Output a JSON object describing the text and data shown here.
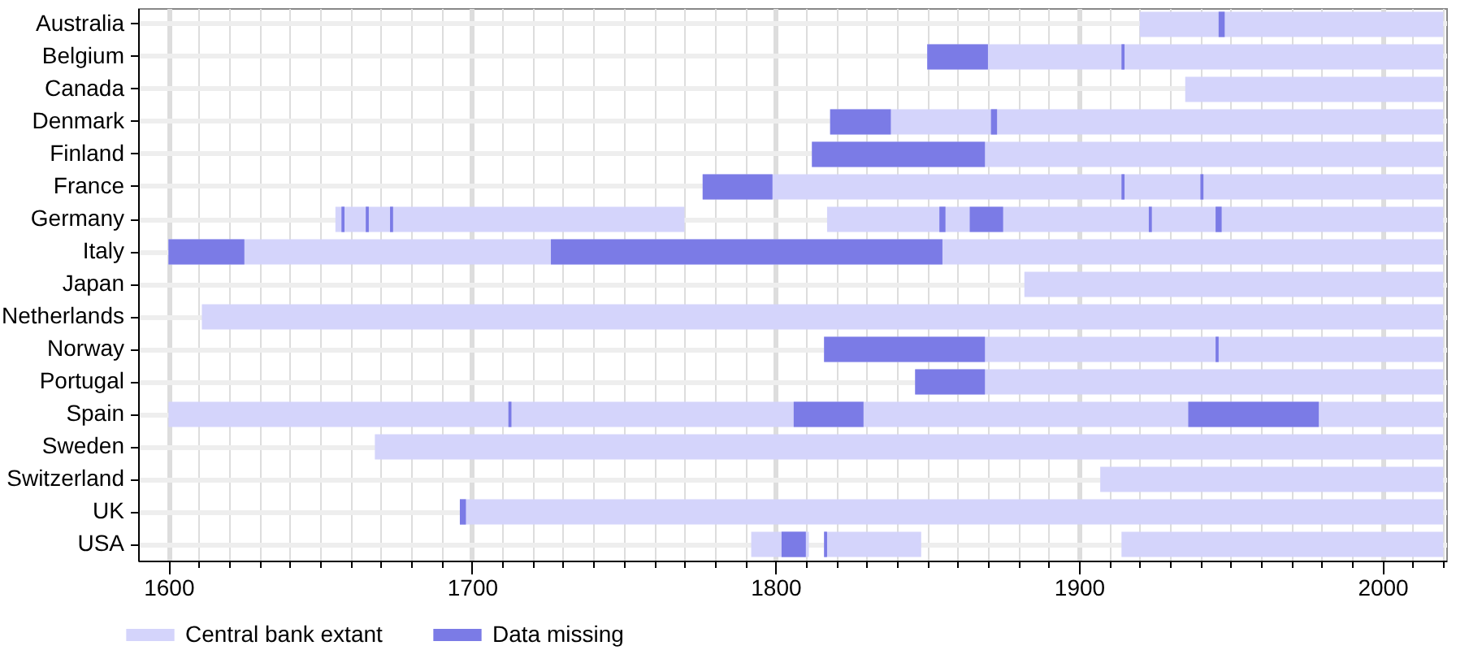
{
  "chart_data": {
    "type": "bar",
    "orientation": "horizontal",
    "categories": [
      "Australia",
      "Belgium",
      "Canada",
      "Denmark",
      "Finland",
      "France",
      "Germany",
      "Italy",
      "Japan",
      "Netherlands",
      "Norway",
      "Portugal",
      "Spain",
      "Sweden",
      "Switzerland",
      "UK",
      "USA"
    ],
    "series": [
      {
        "name": "Central bank extant",
        "color": "#d4d4fb",
        "base": [
          1920,
          1850,
          1935,
          1818,
          1812,
          1776,
          1655,
          1600,
          1882,
          1611,
          1816,
          1846,
          1600,
          1668,
          1907,
          1696,
          1792
        ],
        "values": [
          100,
          170,
          85,
          202,
          208,
          244,
          115,
          420,
          138,
          409,
          204,
          174,
          420,
          352,
          113,
          324,
          19
        ]
      },
      {
        "color": "#d4d4fb",
        "base": [
          null,
          null,
          null,
          null,
          null,
          null,
          1817,
          null,
          null,
          null,
          null,
          null,
          null,
          null,
          null,
          null,
          1816
        ],
        "values": [
          null,
          null,
          null,
          null,
          null,
          null,
          203,
          null,
          null,
          null,
          null,
          null,
          null,
          null,
          null,
          null,
          32
        ]
      },
      {
        "color": "#d4d4fb",
        "base": [
          null,
          null,
          null,
          null,
          null,
          null,
          null,
          null,
          null,
          null,
          null,
          null,
          null,
          null,
          null,
          null,
          1914
        ],
        "values": [
          null,
          null,
          null,
          null,
          null,
          null,
          null,
          null,
          null,
          null,
          null,
          null,
          null,
          null,
          null,
          null,
          106
        ]
      },
      {
        "name": "Data missing",
        "color": "#7b7be6",
        "base": [
          1946,
          1850,
          null,
          1818,
          1812,
          1776,
          1657,
          1600,
          null,
          null,
          1816,
          1846,
          1712,
          null,
          null,
          1696,
          1802
        ],
        "values": [
          2,
          20,
          null,
          20,
          57,
          23,
          1,
          25,
          null,
          null,
          53,
          23,
          1,
          null,
          null,
          2,
          8
        ]
      },
      {
        "color": "#7b7be6",
        "base": [
          null,
          1914,
          null,
          1871,
          null,
          1914,
          1665,
          1726,
          null,
          null,
          1945,
          null,
          1806,
          null,
          null,
          null,
          1816
        ],
        "values": [
          null,
          1,
          null,
          2,
          null,
          1,
          1,
          129,
          null,
          null,
          1,
          null,
          23,
          null,
          null,
          null,
          1
        ]
      },
      {
        "color": "#7b7be6",
        "base": [
          null,
          null,
          null,
          null,
          null,
          1940,
          1673,
          null,
          null,
          null,
          null,
          null,
          1936,
          null,
          null,
          null,
          null
        ],
        "values": [
          null,
          null,
          null,
          null,
          null,
          1,
          1,
          null,
          null,
          null,
          null,
          null,
          43,
          null,
          null,
          null,
          null
        ]
      },
      {
        "color": "#7b7be6",
        "base": [
          null,
          null,
          null,
          null,
          null,
          null,
          1854,
          null,
          null,
          null,
          null,
          null,
          null,
          null,
          null,
          null,
          null
        ],
        "values": [
          null,
          null,
          null,
          null,
          null,
          null,
          2,
          null,
          null,
          null,
          null,
          null,
          null,
          null,
          null,
          null,
          null
        ]
      },
      {
        "color": "#7b7be6",
        "base": [
          null,
          null,
          null,
          null,
          null,
          null,
          1864,
          null,
          null,
          null,
          null,
          null,
          null,
          null,
          null,
          null,
          null
        ],
        "values": [
          null,
          null,
          null,
          null,
          null,
          null,
          11,
          null,
          null,
          null,
          null,
          null,
          null,
          null,
          null,
          null,
          null
        ]
      },
      {
        "color": "#7b7be6",
        "base": [
          null,
          null,
          null,
          null,
          null,
          null,
          1923,
          null,
          null,
          null,
          null,
          null,
          null,
          null,
          null,
          null,
          null
        ],
        "values": [
          null,
          null,
          null,
          null,
          null,
          null,
          1,
          null,
          null,
          null,
          null,
          null,
          null,
          null,
          null,
          null,
          null
        ]
      },
      {
        "color": "#7b7be6",
        "base": [
          null,
          null,
          null,
          null,
          null,
          null,
          1945,
          null,
          null,
          null,
          null,
          null,
          null,
          null,
          null,
          null,
          null
        ],
        "values": [
          null,
          null,
          null,
          null,
          null,
          null,
          2,
          null,
          null,
          null,
          null,
          null,
          null,
          null,
          null,
          null,
          null
        ]
      }
    ],
    "xlim": [
      1590,
      2021
    ],
    "xticks": [
      1600,
      {
        "value": 1610,
        "label": null
      },
      {
        "value": 1620,
        "label": null
      },
      {
        "value": 1630,
        "label": null
      },
      {
        "value": 1640,
        "label": null
      },
      {
        "value": 1650,
        "label": null
      },
      {
        "value": 1660,
        "label": null
      },
      {
        "value": 1670,
        "label": null
      },
      {
        "value": 1680,
        "label": null
      },
      {
        "value": 1690,
        "label": null
      },
      1700,
      {
        "value": 1710,
        "label": null
      },
      {
        "value": 1720,
        "label": null
      },
      {
        "value": 1730,
        "label": null
      },
      {
        "value": 1740,
        "label": null
      },
      {
        "value": 1750,
        "label": null
      },
      {
        "value": 1760,
        "label": null
      },
      {
        "value": 1770,
        "label": null
      },
      {
        "value": 1780,
        "label": null
      },
      {
        "value": 1790,
        "label": null
      },
      1800,
      {
        "value": 1810,
        "label": null
      },
      {
        "value": 1820,
        "label": null
      },
      {
        "value": 1830,
        "label": null
      },
      {
        "value": 1840,
        "label": null
      },
      {
        "value": 1850,
        "label": null
      },
      {
        "value": 1860,
        "label": null
      },
      {
        "value": 1870,
        "label": null
      },
      {
        "value": 1880,
        "label": null
      },
      {
        "value": 1890,
        "label": null
      },
      1900,
      {
        "value": 1910,
        "label": null
      },
      {
        "value": 1920,
        "label": null
      },
      {
        "value": 1930,
        "label": null
      },
      {
        "value": 1940,
        "label": null
      },
      {
        "value": 1950,
        "label": null
      },
      {
        "value": 1960,
        "label": null
      },
      {
        "value": 1970,
        "label": null
      },
      {
        "value": 1980,
        "label": null
      },
      {
        "value": 1990,
        "label": null
      },
      2000,
      {
        "value": 2010,
        "label": null
      },
      {
        "value": 2020,
        "label": null
      }
    ],
    "grid": true,
    "legend": "bottom"
  }
}
